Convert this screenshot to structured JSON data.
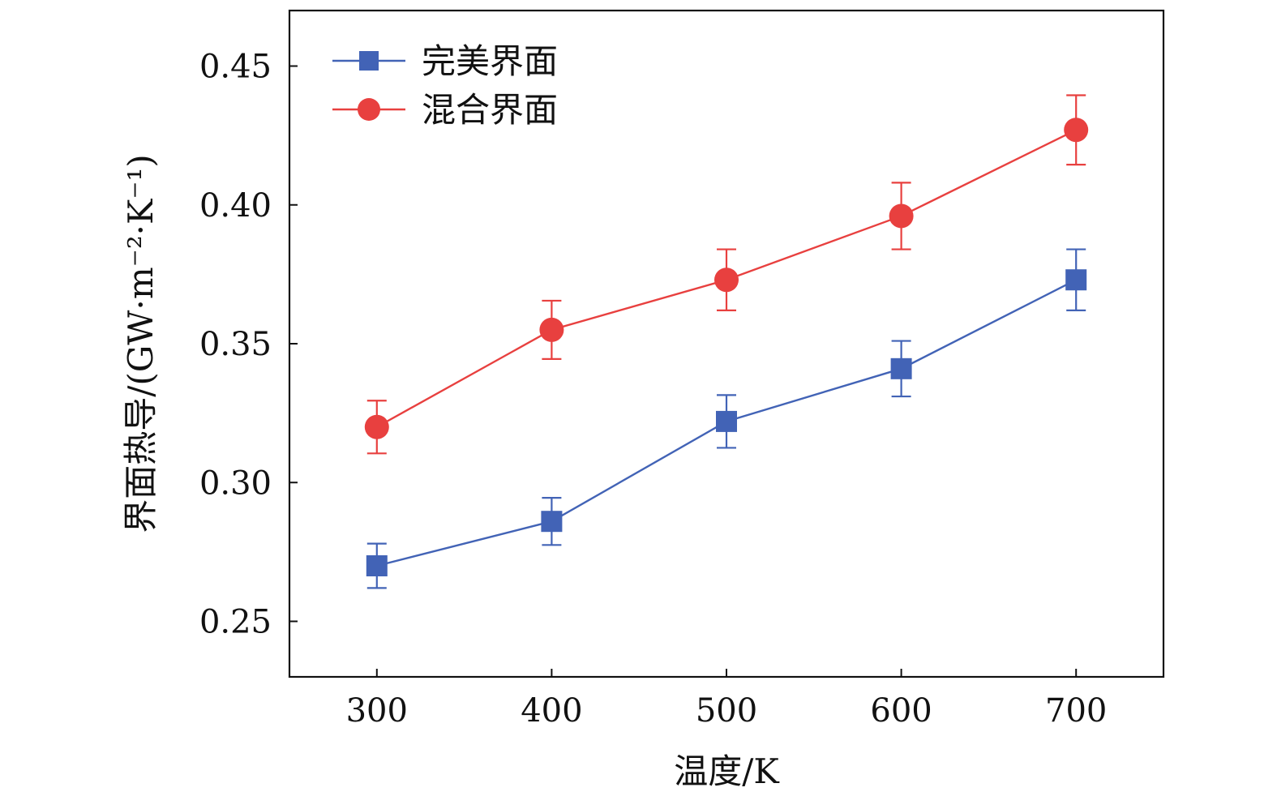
{
  "chart_data": {
    "type": "line",
    "title": "",
    "xlabel": "温度/K",
    "ylabel": "界面热导/(GW·m⁻²·K⁻¹)",
    "x": [
      300,
      400,
      500,
      600,
      700
    ],
    "xlim": [
      250,
      750
    ],
    "ylim": [
      0.23,
      0.47
    ],
    "xticks": [
      300,
      400,
      500,
      600,
      700
    ],
    "xtick_labels": [
      "300",
      "400",
      "500",
      "600",
      "700"
    ],
    "yticks": [
      0.25,
      0.3,
      0.35,
      0.4,
      0.45
    ],
    "ytick_labels": [
      "0.25",
      "0.30",
      "0.35",
      "0.40",
      "0.45"
    ],
    "grid": false,
    "legend_position": "top-left",
    "series": [
      {
        "name": "完美界面",
        "color": "#4263b6",
        "marker": "square",
        "values": [
          0.27,
          0.286,
          0.322,
          0.341,
          0.373
        ],
        "error": [
          0.008,
          0.0085,
          0.0095,
          0.01,
          0.011
        ]
      },
      {
        "name": "混合界面",
        "color": "#e8403f",
        "marker": "circle",
        "values": [
          0.32,
          0.355,
          0.373,
          0.396,
          0.427
        ],
        "error": [
          0.0095,
          0.0105,
          0.011,
          0.012,
          0.0125
        ]
      }
    ]
  }
}
